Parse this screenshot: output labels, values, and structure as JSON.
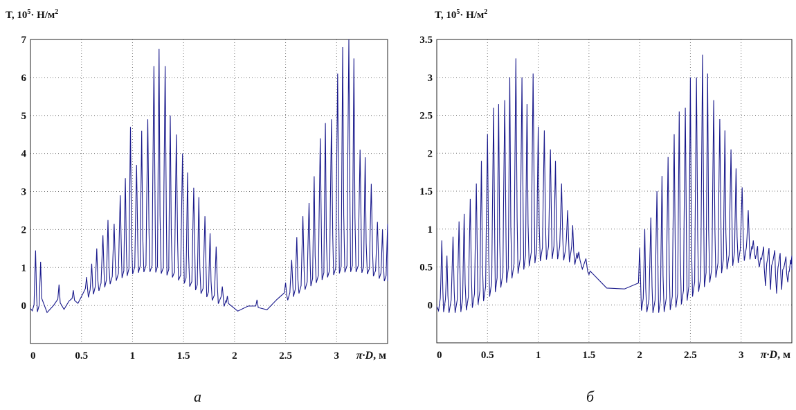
{
  "chart_data": [
    {
      "type": "line",
      "ylabel": {
        "main": "T, 10",
        "exp": "5",
        "unit": "· Н/м",
        "unit_exp": "2"
      },
      "xlabel": {
        "sym": "π·D",
        "unit": ", м"
      },
      "caption": "а",
      "xlim": [
        0,
        3.5
      ],
      "ylim": [
        -1,
        7
      ],
      "xticks": [
        0,
        0.5,
        1,
        1.5,
        2,
        2.5,
        3
      ],
      "xtick_labels": [
        "0",
        "0.5",
        "1",
        "1.5",
        "2",
        "2.5",
        "3"
      ],
      "yticks": [
        0,
        1,
        2,
        3,
        4,
        5,
        6,
        7
      ],
      "ytick_labels": [
        "0",
        "1",
        "2",
        "3",
        "4",
        "5",
        "6",
        "7"
      ],
      "grid": true,
      "color": "#1a1a8c",
      "series": [
        {
          "peak_positions": [
            0.05,
            0.1,
            0.28,
            0.42,
            0.55,
            0.6,
            0.65,
            0.71,
            0.76,
            0.82,
            0.88,
            0.93,
            0.98,
            1.04,
            1.09,
            1.15,
            1.21,
            1.26,
            1.32,
            1.37,
            1.43,
            1.49,
            1.54,
            1.6,
            1.65,
            1.71,
            1.76,
            1.82,
            1.88,
            1.93,
            2.22,
            2.5,
            2.56,
            2.61,
            2.67,
            2.73,
            2.78,
            2.84,
            2.89,
            2.95,
            3.01,
            3.06,
            3.12,
            3.17,
            3.23,
            3.28,
            3.34,
            3.4,
            3.45,
            3.5
          ],
          "peak_heights": [
            1.45,
            1.15,
            0.55,
            0.4,
            0.75,
            1.1,
            1.5,
            1.85,
            2.25,
            2.15,
            2.9,
            3.35,
            4.7,
            3.7,
            4.6,
            4.9,
            6.3,
            6.75,
            6.3,
            5.0,
            4.5,
            4.0,
            3.5,
            3.1,
            2.85,
            2.35,
            1.9,
            1.55,
            0.5,
            0.25,
            0.15,
            0.6,
            1.2,
            1.8,
            2.35,
            2.7,
            3.4,
            4.4,
            4.8,
            4.9,
            6.1,
            6.8,
            7.0,
            6.5,
            4.1,
            3.9,
            3.2,
            2.2,
            2.0,
            2.15
          ],
          "baseline_min": -0.2,
          "baseline_max": 1.0
        }
      ]
    },
    {
      "type": "line",
      "ylabel": {
        "main": "T, 10",
        "exp": "5",
        "unit": "· Н/м",
        "unit_exp": "2"
      },
      "xlabel": {
        "sym": "π·D",
        "unit": ", м"
      },
      "caption": "б",
      "xlim": [
        0,
        3.5
      ],
      "ylim": [
        -0.5,
        3.5
      ],
      "xticks": [
        0,
        0.5,
        1,
        1.5,
        2,
        2.5,
        3
      ],
      "xtick_labels": [
        "0",
        "0.5",
        "1",
        "1.5",
        "2",
        "2.5",
        "3"
      ],
      "yticks": [
        0,
        0.5,
        1,
        1.5,
        2,
        2.5,
        3,
        3.5
      ],
      "ytick_labels": [
        "0",
        "0.5",
        "1",
        "1.5",
        "2",
        "2.5",
        "3",
        "3.5"
      ],
      "grid": true,
      "color": "#1a1a8c",
      "series": [
        {
          "peak_positions": [
            0.05,
            0.1,
            0.16,
            0.22,
            0.27,
            0.33,
            0.39,
            0.44,
            0.5,
            0.56,
            0.61,
            0.67,
            0.72,
            0.78,
            0.84,
            0.89,
            0.95,
            1.0,
            1.06,
            1.12,
            1.17,
            1.23,
            1.29,
            1.34,
            1.4,
            1.5,
            2.0,
            2.05,
            2.11,
            2.17,
            2.22,
            2.28,
            2.34,
            2.39,
            2.45,
            2.5,
            2.56,
            2.62,
            2.67,
            2.73,
            2.79,
            2.84,
            2.9,
            2.95,
            3.01,
            3.07,
            3.12,
            3.18,
            3.24,
            3.29,
            3.35,
            3.4,
            3.46,
            3.5
          ],
          "peak_heights": [
            0.85,
            0.65,
            0.9,
            1.1,
            1.2,
            1.4,
            1.6,
            1.9,
            2.25,
            2.6,
            2.65,
            2.7,
            3.0,
            3.25,
            3.0,
            2.65,
            3.05,
            2.35,
            2.3,
            2.05,
            1.9,
            1.6,
            1.25,
            1.05,
            0.7,
            0.4,
            0.75,
            1.0,
            1.15,
            1.5,
            1.7,
            1.95,
            2.25,
            2.55,
            2.6,
            3.0,
            3.0,
            3.3,
            3.05,
            2.7,
            2.45,
            2.3,
            2.05,
            1.8,
            1.55,
            1.25,
            0.85,
            0.5,
            0.25,
            0.2,
            0.15,
            0.2,
            0.3,
            0.65
          ],
          "baseline_min": -0.1,
          "baseline_max": 0.7
        }
      ]
    }
  ]
}
